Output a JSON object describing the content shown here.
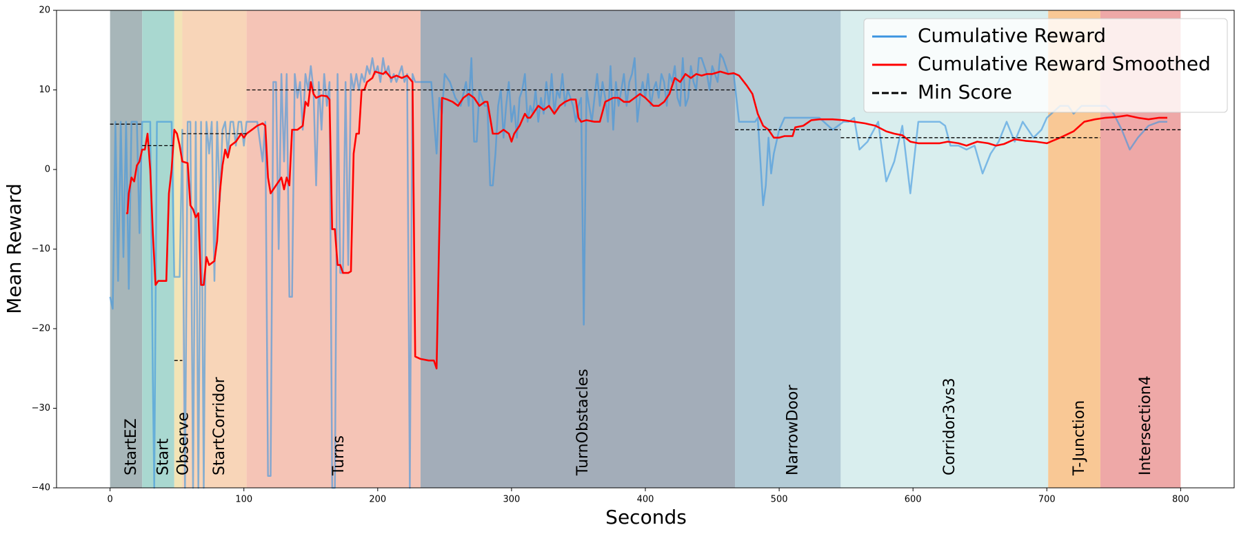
{
  "chart_data": {
    "type": "line",
    "x_label": "Seconds",
    "y_label": "Mean Reward",
    "xlim": [
      -40,
      840
    ],
    "ylim": [
      -40,
      20
    ],
    "xticks": [
      0,
      100,
      200,
      300,
      400,
      500,
      600,
      700,
      800
    ],
    "yticks": [
      {
        "value": -40,
        "label": "−40"
      },
      {
        "value": -30,
        "label": "−30"
      },
      {
        "value": -20,
        "label": "−20"
      },
      {
        "value": -10,
        "label": "−10"
      },
      0,
      10,
      20
    ],
    "legend": "upper right",
    "regions": [
      {
        "label": "StartEZ",
        "start": 0,
        "end": 24,
        "color": "#a7b6b9"
      },
      {
        "label": "Start",
        "start": 24,
        "end": 48,
        "color": "#a9d8d0"
      },
      {
        "label": "Observe",
        "start": 48,
        "end": 54,
        "color": "#f3e4b6"
      },
      {
        "label": "StartCorridor",
        "start": 54,
        "end": 102,
        "color": "#f8d5b8"
      },
      {
        "label": "Turns",
        "start": 102,
        "end": 232,
        "color": "#f5c4b6"
      },
      {
        "label": "TurnObstacles",
        "start": 232,
        "end": 467,
        "color": "#a3adb9"
      },
      {
        "label": "NarrowDoor",
        "start": 467,
        "end": 546,
        "color": "#b3cbd6"
      },
      {
        "label": "Corridor3vs3",
        "start": 546,
        "end": 701,
        "color": "#d9eeee"
      },
      {
        "label": "T-Junction",
        "start": 701,
        "end": 740,
        "color": "#f9c895"
      },
      {
        "label": "Intersection4",
        "start": 740,
        "end": 800,
        "color": "#eea8a7"
      }
    ],
    "series": [
      {
        "name": "Cumulative Reward",
        "color": "#3b94e0",
        "alpha": 0.6,
        "linestyle": "solid",
        "x": [
          0,
          2,
          4,
          6,
          8,
          10,
          12,
          14,
          16,
          18,
          20,
          22,
          24,
          26,
          28,
          30,
          32,
          33,
          35,
          38,
          42,
          46,
          48,
          50,
          52,
          54,
          56,
          58,
          60,
          62,
          64,
          66,
          68,
          70,
          72,
          74,
          76,
          78,
          80,
          82,
          84,
          86,
          88,
          90,
          92,
          94,
          96,
          98,
          100,
          102,
          106,
          110,
          114,
          116,
          118,
          120,
          122,
          124,
          126,
          128,
          130,
          132,
          134,
          136,
          138,
          140,
          142,
          144,
          146,
          148,
          150,
          152,
          154,
          156,
          158,
          160,
          162,
          164,
          166,
          168,
          170,
          172,
          174,
          176,
          178,
          180,
          182,
          184,
          186,
          188,
          190,
          192,
          194,
          196,
          198,
          200,
          202,
          204,
          206,
          208,
          210,
          212,
          214,
          216,
          218,
          220,
          222,
          224,
          226,
          228,
          232,
          236,
          240,
          244,
          246,
          248,
          250,
          254,
          258,
          262,
          266,
          268,
          270,
          272,
          274,
          276,
          278,
          280,
          282,
          284,
          286,
          288,
          290,
          292,
          294,
          296,
          298,
          300,
          302,
          304,
          306,
          308,
          310,
          312,
          314,
          316,
          318,
          320,
          322,
          324,
          326,
          328,
          330,
          332,
          334,
          336,
          338,
          340,
          342,
          344,
          346,
          348,
          350,
          352,
          354,
          356,
          358,
          360,
          362,
          364,
          366,
          368,
          370,
          372,
          374,
          376,
          378,
          380,
          382,
          384,
          386,
          388,
          390,
          392,
          394,
          396,
          398,
          400,
          402,
          404,
          406,
          408,
          410,
          412,
          414,
          416,
          418,
          420,
          422,
          424,
          426,
          428,
          430,
          432,
          434,
          436,
          438,
          440,
          442,
          444,
          446,
          448,
          450,
          452,
          454,
          456,
          458,
          460,
          462,
          466,
          470,
          474,
          478,
          482,
          484,
          486,
          488,
          490,
          492,
          494,
          496,
          500,
          504,
          510,
          520,
          530,
          540,
          548,
          552,
          556,
          560,
          566,
          574,
          580,
          586,
          592,
          598,
          604,
          614,
          620,
          624,
          628,
          634,
          640,
          646,
          652,
          658,
          664,
          670,
          676,
          682,
          690,
          696,
          700,
          710,
          716,
          720,
          726,
          732,
          738,
          744,
          750,
          756,
          762,
          768,
          776,
          784,
          790
        ],
        "values": [
          -16,
          -17.5,
          6,
          -14,
          6,
          -11,
          6,
          -15,
          6,
          6,
          6,
          -8,
          6,
          6,
          6,
          6,
          -26.5,
          -40,
          6,
          6,
          6,
          6,
          -13.5,
          -13.5,
          -13.5,
          5,
          -40,
          6,
          6,
          -40,
          6,
          -40,
          6,
          -40,
          6,
          2,
          6,
          -14,
          6,
          -4,
          5,
          6,
          2,
          6,
          6,
          3,
          6,
          6,
          3,
          6,
          6,
          6,
          1,
          6,
          -38.5,
          -38.5,
          11,
          11,
          -10,
          12,
          1,
          12,
          -16,
          -16,
          12,
          9,
          11,
          5,
          12,
          10,
          13,
          10,
          -2,
          11,
          5,
          12,
          8,
          11,
          -40,
          -40,
          12,
          -13,
          -13,
          11,
          -12,
          12,
          10,
          12,
          10,
          12,
          11,
          13,
          12,
          14,
          12,
          13,
          11,
          14,
          12,
          13,
          11,
          12,
          11,
          12,
          13,
          11,
          12,
          -40,
          12,
          11,
          11,
          11,
          11,
          2,
          9,
          7,
          12,
          11,
          9,
          8,
          11,
          8,
          14,
          3.5,
          3.5,
          10,
          9,
          8,
          8,
          -2,
          -2,
          2,
          8,
          10,
          4,
          8,
          11,
          6,
          8,
          4,
          9,
          10,
          12,
          6,
          8,
          7,
          10,
          6,
          9,
          7,
          11,
          8,
          12,
          7,
          10,
          9,
          12,
          8,
          10,
          9,
          8,
          6,
          8,
          9,
          -19.5,
          10,
          8,
          6,
          9,
          12,
          8,
          11,
          9,
          6,
          13,
          5,
          11,
          8,
          10,
          12,
          8,
          11,
          12,
          14,
          6,
          9,
          11,
          9,
          12,
          8,
          10,
          11,
          9,
          12,
          11,
          8,
          12,
          11,
          13,
          9,
          8,
          14,
          8,
          9,
          13,
          11,
          10,
          14,
          14,
          13,
          12,
          10,
          13,
          12,
          11,
          14.5,
          14,
          13,
          12,
          12,
          6,
          6,
          6,
          6,
          6.5,
          1,
          -4.5,
          -2,
          4,
          -0.5,
          2,
          5,
          6.5,
          6.5,
          6.5,
          6.5,
          5,
          6,
          6,
          6.5,
          2.5,
          3.5,
          6,
          -1.5,
          1,
          5.5,
          -3,
          6,
          6,
          6,
          5.5,
          3,
          3,
          2.5,
          3,
          -0.5,
          2,
          3.5,
          6,
          3.5,
          6,
          4,
          5,
          6.5,
          8,
          8,
          7,
          8,
          8,
          8,
          8,
          7,
          5,
          2.5,
          4,
          5.5,
          6,
          6
        ]
      },
      {
        "name": "Cumulative Reward Smoothed",
        "color": "#ff0000",
        "alpha": 1,
        "linestyle": "solid",
        "x": [
          12,
          13,
          14,
          16,
          18,
          20,
          22,
          24,
          26,
          28,
          30,
          32,
          34,
          36,
          40,
          42,
          44,
          46,
          48,
          50,
          52,
          54,
          58,
          60,
          62,
          64,
          66,
          68,
          70,
          72,
          74,
          78,
          80,
          82,
          84,
          86,
          88,
          90,
          94,
          96,
          98,
          100,
          102,
          106,
          110,
          114,
          116,
          118,
          120,
          124,
          128,
          130,
          132,
          134,
          136,
          140,
          144,
          146,
          148,
          150,
          152,
          154,
          158,
          162,
          164,
          166,
          168,
          170,
          172,
          174,
          178,
          180,
          182,
          184,
          186,
          188,
          190,
          192,
          196,
          198,
          204,
          206,
          210,
          214,
          218,
          222,
          226,
          228,
          232,
          238,
          242,
          244,
          248,
          252,
          256,
          260,
          264,
          268,
          272,
          276,
          280,
          282,
          284,
          286,
          290,
          294,
          298,
          300,
          302,
          306,
          310,
          312,
          314,
          316,
          320,
          324,
          328,
          332,
          334,
          336,
          340,
          344,
          348,
          350,
          352,
          356,
          362,
          366,
          370,
          376,
          380,
          384,
          388,
          392,
          396,
          400,
          406,
          410,
          414,
          418,
          422,
          426,
          430,
          434,
          438,
          442,
          446,
          450,
          456,
          462,
          466,
          470,
          476,
          480,
          484,
          488,
          492,
          496,
          500,
          504,
          510,
          512,
          518,
          524,
          530,
          540,
          548,
          556,
          564,
          572,
          580,
          586,
          592,
          598,
          604,
          614,
          620,
          626,
          634,
          640,
          648,
          656,
          662,
          668,
          676,
          684,
          692,
          700,
          710,
          720,
          728,
          736,
          744,
          752,
          760,
          768,
          776,
          784,
          790
        ],
        "values": [
          -5.5,
          -5.5,
          -3,
          -1,
          -1.5,
          0.5,
          1,
          2.5,
          2.5,
          4.5,
          0,
          -8,
          -14.5,
          -14,
          -14,
          -14,
          -3,
          0,
          5,
          4.5,
          3,
          1,
          0.8,
          -4.5,
          -5,
          -6,
          -5.5,
          -14.5,
          -14.5,
          -11,
          -12,
          -11.5,
          -9,
          -3,
          0.5,
          2.5,
          1.5,
          3,
          3.5,
          4,
          4.5,
          4,
          4.5,
          5,
          5.5,
          5.8,
          5.5,
          -1,
          -3,
          -2,
          -1,
          -2.5,
          -1,
          -2,
          5,
          5,
          5.5,
          8.5,
          8,
          11,
          9.5,
          9,
          9.3,
          9.2,
          8.8,
          -7.5,
          -7.5,
          -12,
          -12,
          -13,
          -13,
          -12.8,
          2,
          4.5,
          4.5,
          10,
          10,
          11,
          11.5,
          12.3,
          12,
          12.3,
          11.5,
          11.8,
          11.5,
          11.8,
          11,
          -23.5,
          -23.8,
          -24,
          -24,
          -25,
          9,
          8.8,
          8.5,
          8,
          9,
          9.5,
          9,
          8,
          8.5,
          8.5,
          6.5,
          4.5,
          4.5,
          5,
          4.5,
          3.5,
          4.5,
          5.5,
          7,
          6.5,
          6.5,
          7,
          8,
          7.5,
          8,
          7,
          7.5,
          8,
          8.5,
          8.8,
          8.8,
          6.5,
          6,
          6.2,
          6,
          6,
          8.5,
          9,
          9,
          8.5,
          8.5,
          9,
          9.5,
          9,
          8,
          8,
          8.5,
          9.5,
          11.5,
          11,
          12,
          11.5,
          12,
          11.8,
          12,
          12,
          12.3,
          12,
          12.1,
          11.8,
          10.5,
          9.5,
          7,
          5.5,
          5,
          4,
          4,
          4.2,
          4.2,
          5.3,
          5.5,
          6.2,
          6.3,
          6.3,
          6.2,
          6,
          5.8,
          5.5,
          4.8,
          4.5,
          4.3,
          3.5,
          3.3,
          3.3,
          3.3,
          3.5,
          3.3,
          3,
          3.5,
          3.3,
          3,
          3.2,
          3.8,
          3.6,
          3.5,
          3.3,
          4,
          4.8,
          6,
          6.3,
          6.5,
          6.6,
          6.8,
          6.5,
          6.3,
          6.5,
          6.5
        ]
      },
      {
        "name": "Min Score",
        "color": "#000000",
        "alpha": 1,
        "linestyle": "dashed",
        "x": [
          0,
          24,
          24,
          24,
          48,
          48,
          48,
          54,
          54,
          54,
          102,
          102,
          102,
          467,
          467,
          467,
          546,
          546,
          546,
          740,
          740,
          740,
          800
        ],
        "values": [
          5.7,
          5.7,
          null,
          3,
          3,
          null,
          -24,
          -24,
          null,
          4.5,
          4.5,
          null,
          10,
          10,
          null,
          5,
          5,
          null,
          4,
          4,
          null,
          5,
          5
        ]
      }
    ]
  }
}
